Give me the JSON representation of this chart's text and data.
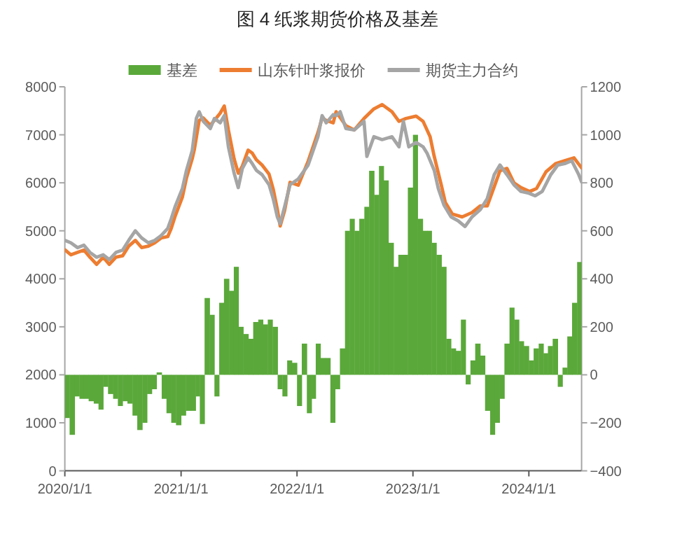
{
  "chart_data": {
    "type": "line",
    "title": "图 4 纸浆期货价格及基差",
    "legend": "top",
    "xlim": [
      "2020-01-01",
      "2024-06-15"
    ],
    "xticks": [
      {
        "value": "2020-01-01",
        "label": "2020/1/1"
      },
      {
        "value": "2021-01-01",
        "label": "2021/1/1"
      },
      {
        "value": "2022-01-01",
        "label": "2022/1/1"
      },
      {
        "value": "2023-01-01",
        "label": "2023/1/1"
      },
      {
        "value": "2024-01-01",
        "label": "2024/1/1"
      }
    ],
    "ylim": [
      0,
      8000
    ],
    "yticks": [
      0,
      1000,
      2000,
      3000,
      4000,
      5000,
      6000,
      7000,
      8000
    ],
    "y2lim": [
      -400,
      1200
    ],
    "y2ticks": [
      {
        "value": -400,
        "label": "−400"
      },
      {
        "value": -200,
        "label": "−200"
      },
      0,
      200,
      400,
      600,
      800,
      1000,
      1200
    ],
    "series": [
      {
        "name": "基差",
        "type": "bar",
        "axis": "y2",
        "color": "#5aa83a",
        "x": [
          "2020-01-01",
          "2020-01-16",
          "2020-02-01",
          "2020-02-16",
          "2020-03-01",
          "2020-03-16",
          "2020-04-01",
          "2020-04-16",
          "2020-05-01",
          "2020-05-16",
          "2020-06-01",
          "2020-06-16",
          "2020-07-01",
          "2020-07-16",
          "2020-08-01",
          "2020-08-16",
          "2020-09-01",
          "2020-09-16",
          "2020-10-01",
          "2020-10-16",
          "2020-11-01",
          "2020-11-16",
          "2020-12-01",
          "2020-12-16",
          "2021-01-01",
          "2021-01-16",
          "2021-02-01",
          "2021-02-16",
          "2021-03-01",
          "2021-03-16",
          "2021-04-01",
          "2021-04-16",
          "2021-05-01",
          "2021-05-16",
          "2021-06-01",
          "2021-06-16",
          "2021-07-01",
          "2021-07-16",
          "2021-08-01",
          "2021-08-16",
          "2021-09-01",
          "2021-09-16",
          "2021-10-01",
          "2021-10-16",
          "2021-11-01",
          "2021-11-16",
          "2021-12-01",
          "2021-12-16",
          "2022-01-01",
          "2022-01-16",
          "2022-02-01",
          "2022-02-16",
          "2022-03-01",
          "2022-03-16",
          "2022-04-01",
          "2022-04-16",
          "2022-05-01",
          "2022-05-16",
          "2022-06-01",
          "2022-06-16",
          "2022-07-01",
          "2022-07-16",
          "2022-08-01",
          "2022-08-16",
          "2022-09-01",
          "2022-09-16",
          "2022-10-01",
          "2022-10-16",
          "2022-11-01",
          "2022-11-16",
          "2022-12-01",
          "2022-12-16",
          "2023-01-01",
          "2023-01-16",
          "2023-02-01",
          "2023-02-16",
          "2023-03-01",
          "2023-03-16",
          "2023-04-01",
          "2023-04-16",
          "2023-05-01",
          "2023-05-16",
          "2023-06-01",
          "2023-06-16",
          "2023-07-01",
          "2023-07-16",
          "2023-08-01",
          "2023-08-16",
          "2023-09-01",
          "2023-09-16",
          "2023-10-01",
          "2023-10-16",
          "2023-11-01",
          "2023-11-16",
          "2023-12-01",
          "2023-12-16",
          "2024-01-01",
          "2024-01-16",
          "2024-02-01",
          "2024-02-16",
          "2024-03-01",
          "2024-03-16",
          "2024-04-01",
          "2024-04-16",
          "2024-05-01",
          "2024-05-16",
          "2024-06-01"
        ],
        "values": [
          -180,
          -250,
          -90,
          -100,
          -100,
          -110,
          -120,
          -145,
          -50,
          -80,
          -100,
          -130,
          -110,
          -120,
          -170,
          -230,
          -200,
          -80,
          -60,
          10,
          -100,
          -160,
          -200,
          -210,
          -170,
          -150,
          -150,
          -90,
          -205,
          320,
          250,
          -90,
          300,
          400,
          350,
          450,
          200,
          170,
          150,
          220,
          230,
          210,
          230,
          200,
          -60,
          -90,
          60,
          50,
          -130,
          130,
          -160,
          -100,
          130,
          70,
          70,
          -200,
          -60,
          110,
          600,
          650,
          600,
          650,
          700,
          850,
          750,
          870,
          810,
          550,
          450,
          500,
          500,
          780,
          1000,
          650,
          600,
          600,
          550,
          500,
          450,
          150,
          110,
          100,
          230,
          -40,
          60,
          130,
          80,
          -150,
          -250,
          -200,
          -100,
          130,
          280,
          230,
          140,
          120,
          60,
          110,
          130,
          90,
          120,
          150,
          -50,
          30,
          160,
          300,
          470
        ]
      },
      {
        "name": "山东针叶浆报价",
        "color": "#ed7d31",
        "x": [
          "2020-01-02",
          "2020-01-20",
          "2020-02-10",
          "2020-03-01",
          "2020-03-20",
          "2020-04-10",
          "2020-05-01",
          "2020-05-20",
          "2020-06-10",
          "2020-07-01",
          "2020-07-20",
          "2020-08-10",
          "2020-08-30",
          "2020-09-20",
          "2020-10-10",
          "2020-10-30",
          "2020-11-20",
          "2020-12-01",
          "2020-12-13",
          "2021-01-05",
          "2021-01-18",
          "2021-02-05",
          "2021-02-12",
          "2021-02-27",
          "2021-03-12",
          "2021-04-03",
          "2021-04-16",
          "2021-05-04",
          "2021-05-17",
          "2021-05-30",
          "2021-06-17",
          "2021-06-30",
          "2021-07-13",
          "2021-07-31",
          "2021-08-13",
          "2021-08-26",
          "2021-09-13",
          "2021-10-05",
          "2021-10-18",
          "2021-10-31",
          "2021-11-09",
          "2021-11-23",
          "2021-12-10",
          "2022-01-05",
          "2022-02-05",
          "2022-03-08",
          "2022-03-21",
          "2022-04-03",
          "2022-04-25",
          "2022-05-04",
          "2022-06-04",
          "2022-06-30",
          "2022-07-31",
          "2022-08-31",
          "2022-09-26",
          "2022-10-27",
          "2022-11-18",
          "2022-12-10",
          "2023-01-11",
          "2023-02-02",
          "2023-02-24",
          "2023-03-09",
          "2023-03-31",
          "2023-04-13",
          "2023-05-05",
          "2023-06-05",
          "2023-07-06",
          "2023-08-01",
          "2023-08-23",
          "2023-09-14",
          "2023-10-02",
          "2023-10-24",
          "2023-11-15",
          "2023-12-07",
          "2024-01-03",
          "2024-01-25",
          "2024-02-24",
          "2024-03-25",
          "2024-04-23",
          "2024-05-22",
          "2024-06-15"
        ],
        "values": [
          4600,
          4500,
          4550,
          4600,
          4450,
          4300,
          4450,
          4300,
          4450,
          4480,
          4680,
          4800,
          4650,
          4680,
          4750,
          4850,
          4880,
          5050,
          5300,
          5700,
          6100,
          6500,
          6700,
          7300,
          7350,
          7200,
          7300,
          7450,
          7600,
          7100,
          6500,
          6200,
          6350,
          6680,
          6620,
          6480,
          6370,
          6180,
          5870,
          5450,
          5100,
          5420,
          6010,
          5950,
          6450,
          7050,
          7350,
          7300,
          7250,
          7480,
          7190,
          7100,
          7340,
          7540,
          7630,
          7480,
          7280,
          7340,
          7390,
          7280,
          6960,
          6550,
          5960,
          5590,
          5350,
          5290,
          5380,
          5520,
          5520,
          5920,
          6250,
          6300,
          6000,
          5900,
          5820,
          5880,
          6230,
          6400,
          6460,
          6520,
          6310
        ]
      },
      {
        "name": "期货主力合约",
        "color": "#a5a5a5",
        "x": [
          "2020-01-02",
          "2020-01-20",
          "2020-02-10",
          "2020-03-01",
          "2020-03-20",
          "2020-04-10",
          "2020-05-01",
          "2020-05-20",
          "2020-06-10",
          "2020-07-01",
          "2020-07-20",
          "2020-08-10",
          "2020-08-30",
          "2020-09-20",
          "2020-10-10",
          "2020-10-30",
          "2020-11-20",
          "2020-12-01",
          "2020-12-13",
          "2021-01-05",
          "2021-01-18",
          "2021-02-05",
          "2021-02-18",
          "2021-02-27",
          "2021-03-12",
          "2021-04-03",
          "2021-04-16",
          "2021-05-04",
          "2021-05-17",
          "2021-05-30",
          "2021-06-17",
          "2021-06-30",
          "2021-07-13",
          "2021-07-31",
          "2021-08-13",
          "2021-08-26",
          "2021-09-13",
          "2021-10-05",
          "2021-10-18",
          "2021-10-31",
          "2021-11-09",
          "2021-11-23",
          "2021-12-10",
          "2022-01-05",
          "2022-02-05",
          "2022-03-08",
          "2022-03-21",
          "2022-04-03",
          "2022-04-25",
          "2022-05-04",
          "2022-05-17",
          "2022-06-04",
          "2022-06-30",
          "2022-07-31",
          "2022-08-09",
          "2022-08-31",
          "2022-09-26",
          "2022-10-27",
          "2022-11-18",
          "2022-12-02",
          "2022-12-19",
          "2023-01-11",
          "2023-02-02",
          "2023-02-15",
          "2023-03-09",
          "2023-03-22",
          "2023-04-09",
          "2023-05-01",
          "2023-05-23",
          "2023-06-14",
          "2023-07-06",
          "2023-08-01",
          "2023-08-23",
          "2023-09-14",
          "2023-10-02",
          "2023-10-24",
          "2023-11-15",
          "2023-12-07",
          "2023-12-29",
          "2024-01-21",
          "2024-02-12",
          "2024-03-10",
          "2024-04-01",
          "2024-04-23",
          "2024-05-15",
          "2024-06-06",
          "2024-06-15"
        ],
        "values": [
          4800,
          4750,
          4650,
          4700,
          4550,
          4450,
          4500,
          4400,
          4550,
          4600,
          4800,
          5000,
          4850,
          4750,
          4800,
          4900,
          5050,
          5250,
          5500,
          5880,
          6260,
          6670,
          7340,
          7480,
          7280,
          7130,
          7340,
          7250,
          7400,
          6750,
          6200,
          5900,
          6300,
          6520,
          6400,
          6260,
          6170,
          5960,
          5670,
          5290,
          5150,
          5500,
          5960,
          6080,
          6370,
          6960,
          7400,
          7250,
          7420,
          7400,
          7480,
          7130,
          7100,
          7280,
          6550,
          6960,
          6900,
          6960,
          6750,
          7280,
          6750,
          6840,
          6750,
          6610,
          6260,
          5880,
          5530,
          5290,
          5210,
          5090,
          5290,
          5440,
          5670,
          6170,
          6370,
          6170,
          5960,
          5820,
          5790,
          5730,
          5820,
          6170,
          6370,
          6400,
          6460,
          6170,
          6020
        ]
      }
    ]
  }
}
